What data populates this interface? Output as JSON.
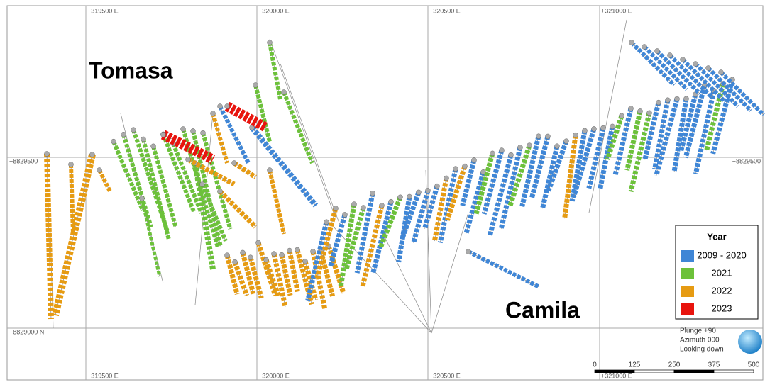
{
  "grid": {
    "eastings_top": [
      "+319500 E",
      "+320000 E",
      "+320500 E",
      "+321000 E"
    ],
    "eastings_bottom": [
      "+319500 E",
      "+320000 E",
      "+320500 E",
      "+321000 E"
    ],
    "northings_left": [
      "+8829500",
      "+8829000 N"
    ],
    "northings_right": [
      "+8829500"
    ]
  },
  "labels": {
    "tomasa": "Tomasa",
    "camila": "Camila"
  },
  "legend": {
    "title": "Year",
    "items": [
      {
        "label": "2009 - 2020",
        "color": "#3f86d6"
      },
      {
        "label": "2021",
        "color": "#6cc13a"
      },
      {
        "label": "2022",
        "color": "#e69b12"
      },
      {
        "label": "2023",
        "color": "#e8140e"
      }
    ]
  },
  "view": {
    "plunge": "Plunge +90",
    "azimuth": "Azimuth 000",
    "looking": "Looking down"
  },
  "scale_bar": {
    "labels": [
      "0",
      "125",
      "250",
      "375",
      "500"
    ]
  }
}
